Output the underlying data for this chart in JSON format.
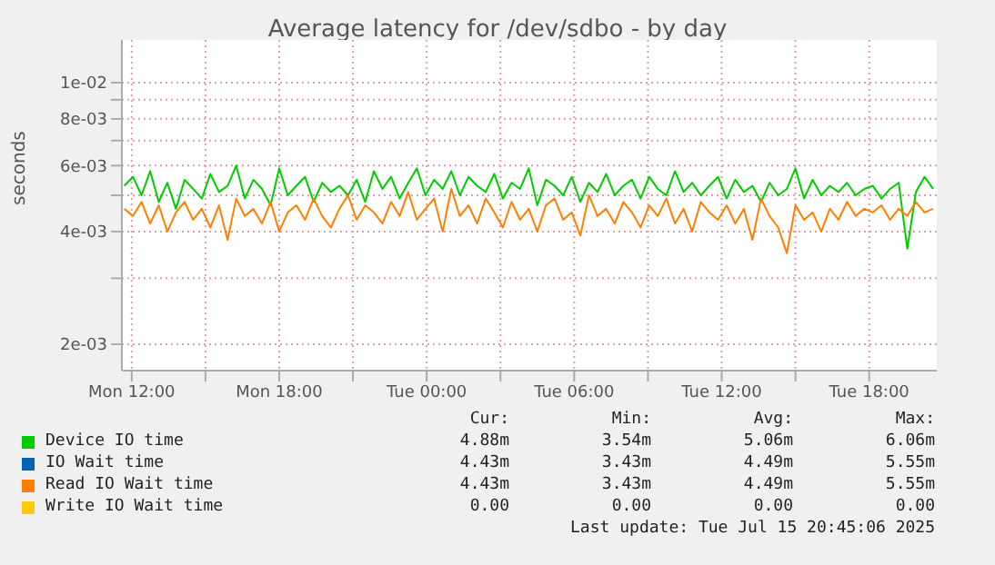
{
  "chart_data": {
    "type": "line",
    "title": "Average latency for /dev/sdbo - by day",
    "ylabel": "seconds",
    "log": "y",
    "grid": true,
    "legend": "bottom",
    "marker": "none",
    "line_style": "solid",
    "xlim": [
      "2025-07-14T11:36",
      "2025-07-15T20:45"
    ],
    "xticks": [
      {
        "value": "2025-07-14T12:00",
        "label": "Mon 12:00"
      },
      {
        "value": "2025-07-14T15:00",
        "label": null
      },
      {
        "value": "2025-07-14T18:00",
        "label": "Mon 18:00"
      },
      {
        "value": "2025-07-14T21:00",
        "label": null
      },
      {
        "value": "2025-07-15T00:00",
        "label": "Tue 00:00"
      },
      {
        "value": "2025-07-15T03:00",
        "label": null
      },
      {
        "value": "2025-07-15T06:00",
        "label": "Tue 06:00"
      },
      {
        "value": "2025-07-15T09:00",
        "label": null
      },
      {
        "value": "2025-07-15T12:00",
        "label": "Tue 12:00"
      },
      {
        "value": "2025-07-15T15:00",
        "label": null
      },
      {
        "value": "2025-07-15T18:00",
        "label": "Tue 18:00"
      }
    ],
    "ylim": [
      0.0017,
      0.013
    ],
    "yticks": [
      {
        "value": 0.002,
        "label": "2e-03"
      },
      {
        "value": 0.003,
        "label": null
      },
      {
        "value": 0.004,
        "label": "4e-03"
      },
      {
        "value": 0.005,
        "label": null
      },
      {
        "value": 0.006,
        "label": "6e-03"
      },
      {
        "value": 0.007,
        "label": null
      },
      {
        "value": 0.008,
        "label": "8e-03"
      },
      {
        "value": 0.009,
        "label": null
      },
      {
        "value": 0.01,
        "label": "1e-02"
      }
    ],
    "x": [
      "2025-07-14T11:42",
      "2025-07-14T12:03",
      "2025-07-14T12:24",
      "2025-07-14T12:45",
      "2025-07-14T13:06",
      "2025-07-14T13:27",
      "2025-07-14T13:48",
      "2025-07-14T14:09",
      "2025-07-14T14:30",
      "2025-07-14T14:51",
      "2025-07-14T15:12",
      "2025-07-14T15:33",
      "2025-07-14T15:54",
      "2025-07-14T16:15",
      "2025-07-14T16:36",
      "2025-07-14T16:57",
      "2025-07-14T17:18",
      "2025-07-14T17:39",
      "2025-07-14T18:00",
      "2025-07-14T18:21",
      "2025-07-14T18:42",
      "2025-07-14T19:03",
      "2025-07-14T19:24",
      "2025-07-14T19:45",
      "2025-07-14T20:06",
      "2025-07-14T20:27",
      "2025-07-14T20:48",
      "2025-07-14T21:09",
      "2025-07-14T21:30",
      "2025-07-14T21:51",
      "2025-07-14T22:12",
      "2025-07-14T22:33",
      "2025-07-14T22:54",
      "2025-07-14T23:15",
      "2025-07-14T23:36",
      "2025-07-14T23:57",
      "2025-07-15T00:18",
      "2025-07-15T00:39",
      "2025-07-15T01:00",
      "2025-07-15T01:21",
      "2025-07-15T01:42",
      "2025-07-15T02:03",
      "2025-07-15T02:24",
      "2025-07-15T02:45",
      "2025-07-15T03:06",
      "2025-07-15T03:27",
      "2025-07-15T03:48",
      "2025-07-15T04:09",
      "2025-07-15T04:30",
      "2025-07-15T04:51",
      "2025-07-15T05:12",
      "2025-07-15T05:33",
      "2025-07-15T05:54",
      "2025-07-15T06:15",
      "2025-07-15T06:36",
      "2025-07-15T06:57",
      "2025-07-15T07:18",
      "2025-07-15T07:39",
      "2025-07-15T08:00",
      "2025-07-15T08:21",
      "2025-07-15T08:42",
      "2025-07-15T09:03",
      "2025-07-15T09:24",
      "2025-07-15T09:45",
      "2025-07-15T10:06",
      "2025-07-15T10:27",
      "2025-07-15T10:48",
      "2025-07-15T11:09",
      "2025-07-15T11:30",
      "2025-07-15T11:51",
      "2025-07-15T12:12",
      "2025-07-15T12:33",
      "2025-07-15T12:54",
      "2025-07-15T13:15",
      "2025-07-15T13:36",
      "2025-07-15T13:57",
      "2025-07-15T14:18",
      "2025-07-15T14:39",
      "2025-07-15T15:00",
      "2025-07-15T15:21",
      "2025-07-15T15:42",
      "2025-07-15T16:03",
      "2025-07-15T16:24",
      "2025-07-15T16:45",
      "2025-07-15T17:06",
      "2025-07-15T17:27",
      "2025-07-15T17:48",
      "2025-07-15T18:09",
      "2025-07-15T18:30",
      "2025-07-15T18:51",
      "2025-07-15T19:12",
      "2025-07-15T19:33",
      "2025-07-15T19:54",
      "2025-07-15T20:15",
      "2025-07-15T20:36"
    ],
    "series": [
      {
        "name": "Device IO time",
        "color": "#00cc00",
        "values": [
          0.0053,
          0.0056,
          0.005,
          0.0058,
          0.0048,
          0.0054,
          0.0046,
          0.0055,
          0.0052,
          0.0049,
          0.0057,
          0.0051,
          0.0053,
          0.006,
          0.0049,
          0.0055,
          0.0052,
          0.0047,
          0.0059,
          0.005,
          0.0053,
          0.0056,
          0.0048,
          0.0054,
          0.0051,
          0.0053,
          0.005,
          0.0055,
          0.0048,
          0.0058,
          0.0052,
          0.0056,
          0.0049,
          0.0054,
          0.0059,
          0.005,
          0.0055,
          0.0052,
          0.0058,
          0.005,
          0.0056,
          0.0053,
          0.0051,
          0.0057,
          0.0049,
          0.0054,
          0.0052,
          0.0059,
          0.0047,
          0.0055,
          0.0053,
          0.005,
          0.0056,
          0.0048,
          0.0054,
          0.0051,
          0.0057,
          0.005,
          0.0053,
          0.0055,
          0.0049,
          0.0056,
          0.0052,
          0.005,
          0.0058,
          0.0051,
          0.0054,
          0.005,
          0.0053,
          0.0056,
          0.0049,
          0.0055,
          0.0051,
          0.0053,
          0.0048,
          0.0054,
          0.005,
          0.0052,
          0.0059,
          0.0049,
          0.0055,
          0.005,
          0.0053,
          0.0051,
          0.0054,
          0.005,
          0.0052,
          0.0053,
          0.0049,
          0.0052,
          0.0054,
          0.0036,
          0.0051,
          0.0056,
          0.0052
        ]
      },
      {
        "name": "IO Wait time",
        "color": "#0066b3",
        "values": [
          null,
          null,
          null,
          null,
          null,
          null,
          null,
          null,
          null,
          null,
          null,
          null,
          null,
          null,
          null,
          null,
          null,
          null,
          null,
          null,
          null,
          null,
          null,
          null,
          null,
          null,
          null,
          null,
          null,
          null,
          null,
          null,
          null,
          null,
          null,
          null,
          null,
          null,
          null,
          null,
          null,
          null,
          null,
          null,
          null,
          null,
          null,
          null,
          null,
          null,
          null,
          null,
          null,
          null,
          null,
          null,
          null,
          null,
          null,
          null,
          null,
          null,
          null,
          null,
          null,
          null,
          null,
          null,
          null,
          null,
          null,
          null,
          null,
          null,
          null,
          null,
          null,
          null,
          null,
          null,
          null,
          null,
          null,
          null,
          null,
          null,
          null,
          null,
          null,
          null,
          null,
          null,
          null,
          null,
          null
        ]
      },
      {
        "name": "Read IO Wait time",
        "color": "#ff8000",
        "values": [
          0.0046,
          0.0044,
          0.0048,
          0.0042,
          0.0047,
          0.004,
          0.0045,
          0.0048,
          0.0043,
          0.0046,
          0.0041,
          0.0047,
          0.0038,
          0.0049,
          0.0044,
          0.0046,
          0.0042,
          0.0048,
          0.004,
          0.0045,
          0.0047,
          0.0043,
          0.0049,
          0.0044,
          0.0041,
          0.0046,
          0.005,
          0.0043,
          0.0047,
          0.0045,
          0.0042,
          0.0048,
          0.0044,
          0.0051,
          0.0043,
          0.0046,
          0.0049,
          0.004,
          0.0052,
          0.0044,
          0.0047,
          0.0042,
          0.0049,
          0.0045,
          0.0041,
          0.0048,
          0.0043,
          0.0046,
          0.004,
          0.0047,
          0.0049,
          0.0043,
          0.0045,
          0.0039,
          0.005,
          0.0044,
          0.0046,
          0.0042,
          0.0048,
          0.0045,
          0.0041,
          0.0047,
          0.0044,
          0.0049,
          0.0042,
          0.0046,
          0.004,
          0.0048,
          0.0045,
          0.0043,
          0.0047,
          0.0042,
          0.0046,
          0.0038,
          0.0049,
          0.0044,
          0.0041,
          0.0035,
          0.0047,
          0.0043,
          0.0045,
          0.004,
          0.0046,
          0.0043,
          0.0048,
          0.0044,
          0.0046,
          0.0045,
          0.0047,
          0.0043,
          0.0046,
          0.0044,
          0.0048,
          0.0045,
          0.0046
        ]
      },
      {
        "name": "Write IO Wait time",
        "color": "#ffcc00",
        "values": [
          null,
          null,
          null,
          null,
          null,
          null,
          null,
          null,
          null,
          null,
          null,
          null,
          null,
          null,
          null,
          null,
          null,
          null,
          null,
          null,
          null,
          null,
          null,
          null,
          null,
          null,
          null,
          null,
          null,
          null,
          null,
          null,
          null,
          null,
          null,
          null,
          null,
          null,
          null,
          null,
          null,
          null,
          null,
          null,
          null,
          null,
          null,
          null,
          null,
          null,
          null,
          null,
          null,
          null,
          null,
          null,
          null,
          null,
          null,
          null,
          null,
          null,
          null,
          null,
          null,
          null,
          null,
          null,
          null,
          null,
          null,
          null,
          null,
          null,
          null,
          null,
          null,
          null,
          null,
          null,
          null,
          null,
          null,
          null,
          null,
          null,
          null,
          null,
          null,
          null,
          null,
          null,
          null,
          null,
          null
        ]
      }
    ],
    "annotations": [
      "Cur:",
      "Min:",
      "Avg:",
      "Max:",
      "4.88m",
      "3.54m",
      "5.06m",
      "6.06m",
      "4.43m",
      "3.43m",
      "4.49m",
      "5.55m",
      "4.43m",
      "3.43m",
      "4.49m",
      "5.55m",
      "0.00",
      "0.00",
      "0.00",
      "0.00",
      "Last update: Tue Jul 15 20:45:06 2025"
    ]
  }
}
